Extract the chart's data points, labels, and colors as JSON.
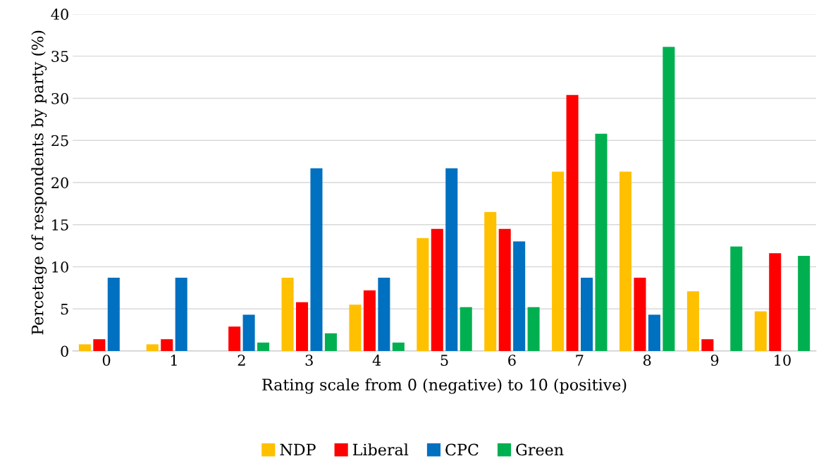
{
  "chart_data": {
    "type": "bar",
    "xlabel": "Rating scale from 0 (negative) to 10 (positive)",
    "ylabel": "Percetage of respondents by party (%)",
    "categories": [
      "0",
      "1",
      "2",
      "3",
      "4",
      "5",
      "6",
      "7",
      "8",
      "9",
      "10"
    ],
    "series": [
      {
        "name": "NDP",
        "color": "#ffc000",
        "values": [
          0.8,
          0.8,
          0,
          8.7,
          5.5,
          13.4,
          16.5,
          21.3,
          21.3,
          7.1,
          4.7
        ]
      },
      {
        "name": "Liberal",
        "color": "#ff0000",
        "values": [
          1.4,
          1.4,
          2.9,
          5.8,
          7.2,
          14.5,
          14.5,
          30.4,
          8.7,
          1.4,
          11.6
        ]
      },
      {
        "name": "CPC",
        "color": "#0070c0",
        "values": [
          8.7,
          8.7,
          4.3,
          21.7,
          8.7,
          21.7,
          13.0,
          8.7,
          4.3,
          0,
          0
        ]
      },
      {
        "name": "Green",
        "color": "#00b050",
        "values": [
          0,
          0,
          1.0,
          2.1,
          1.0,
          5.2,
          5.2,
          25.8,
          36.1,
          12.4,
          11.3
        ]
      }
    ],
    "ylim": [
      0,
      40
    ],
    "yticks": [
      0,
      5,
      10,
      15,
      20,
      25,
      30,
      35,
      40
    ],
    "grid": "y",
    "legend": "bottom"
  }
}
